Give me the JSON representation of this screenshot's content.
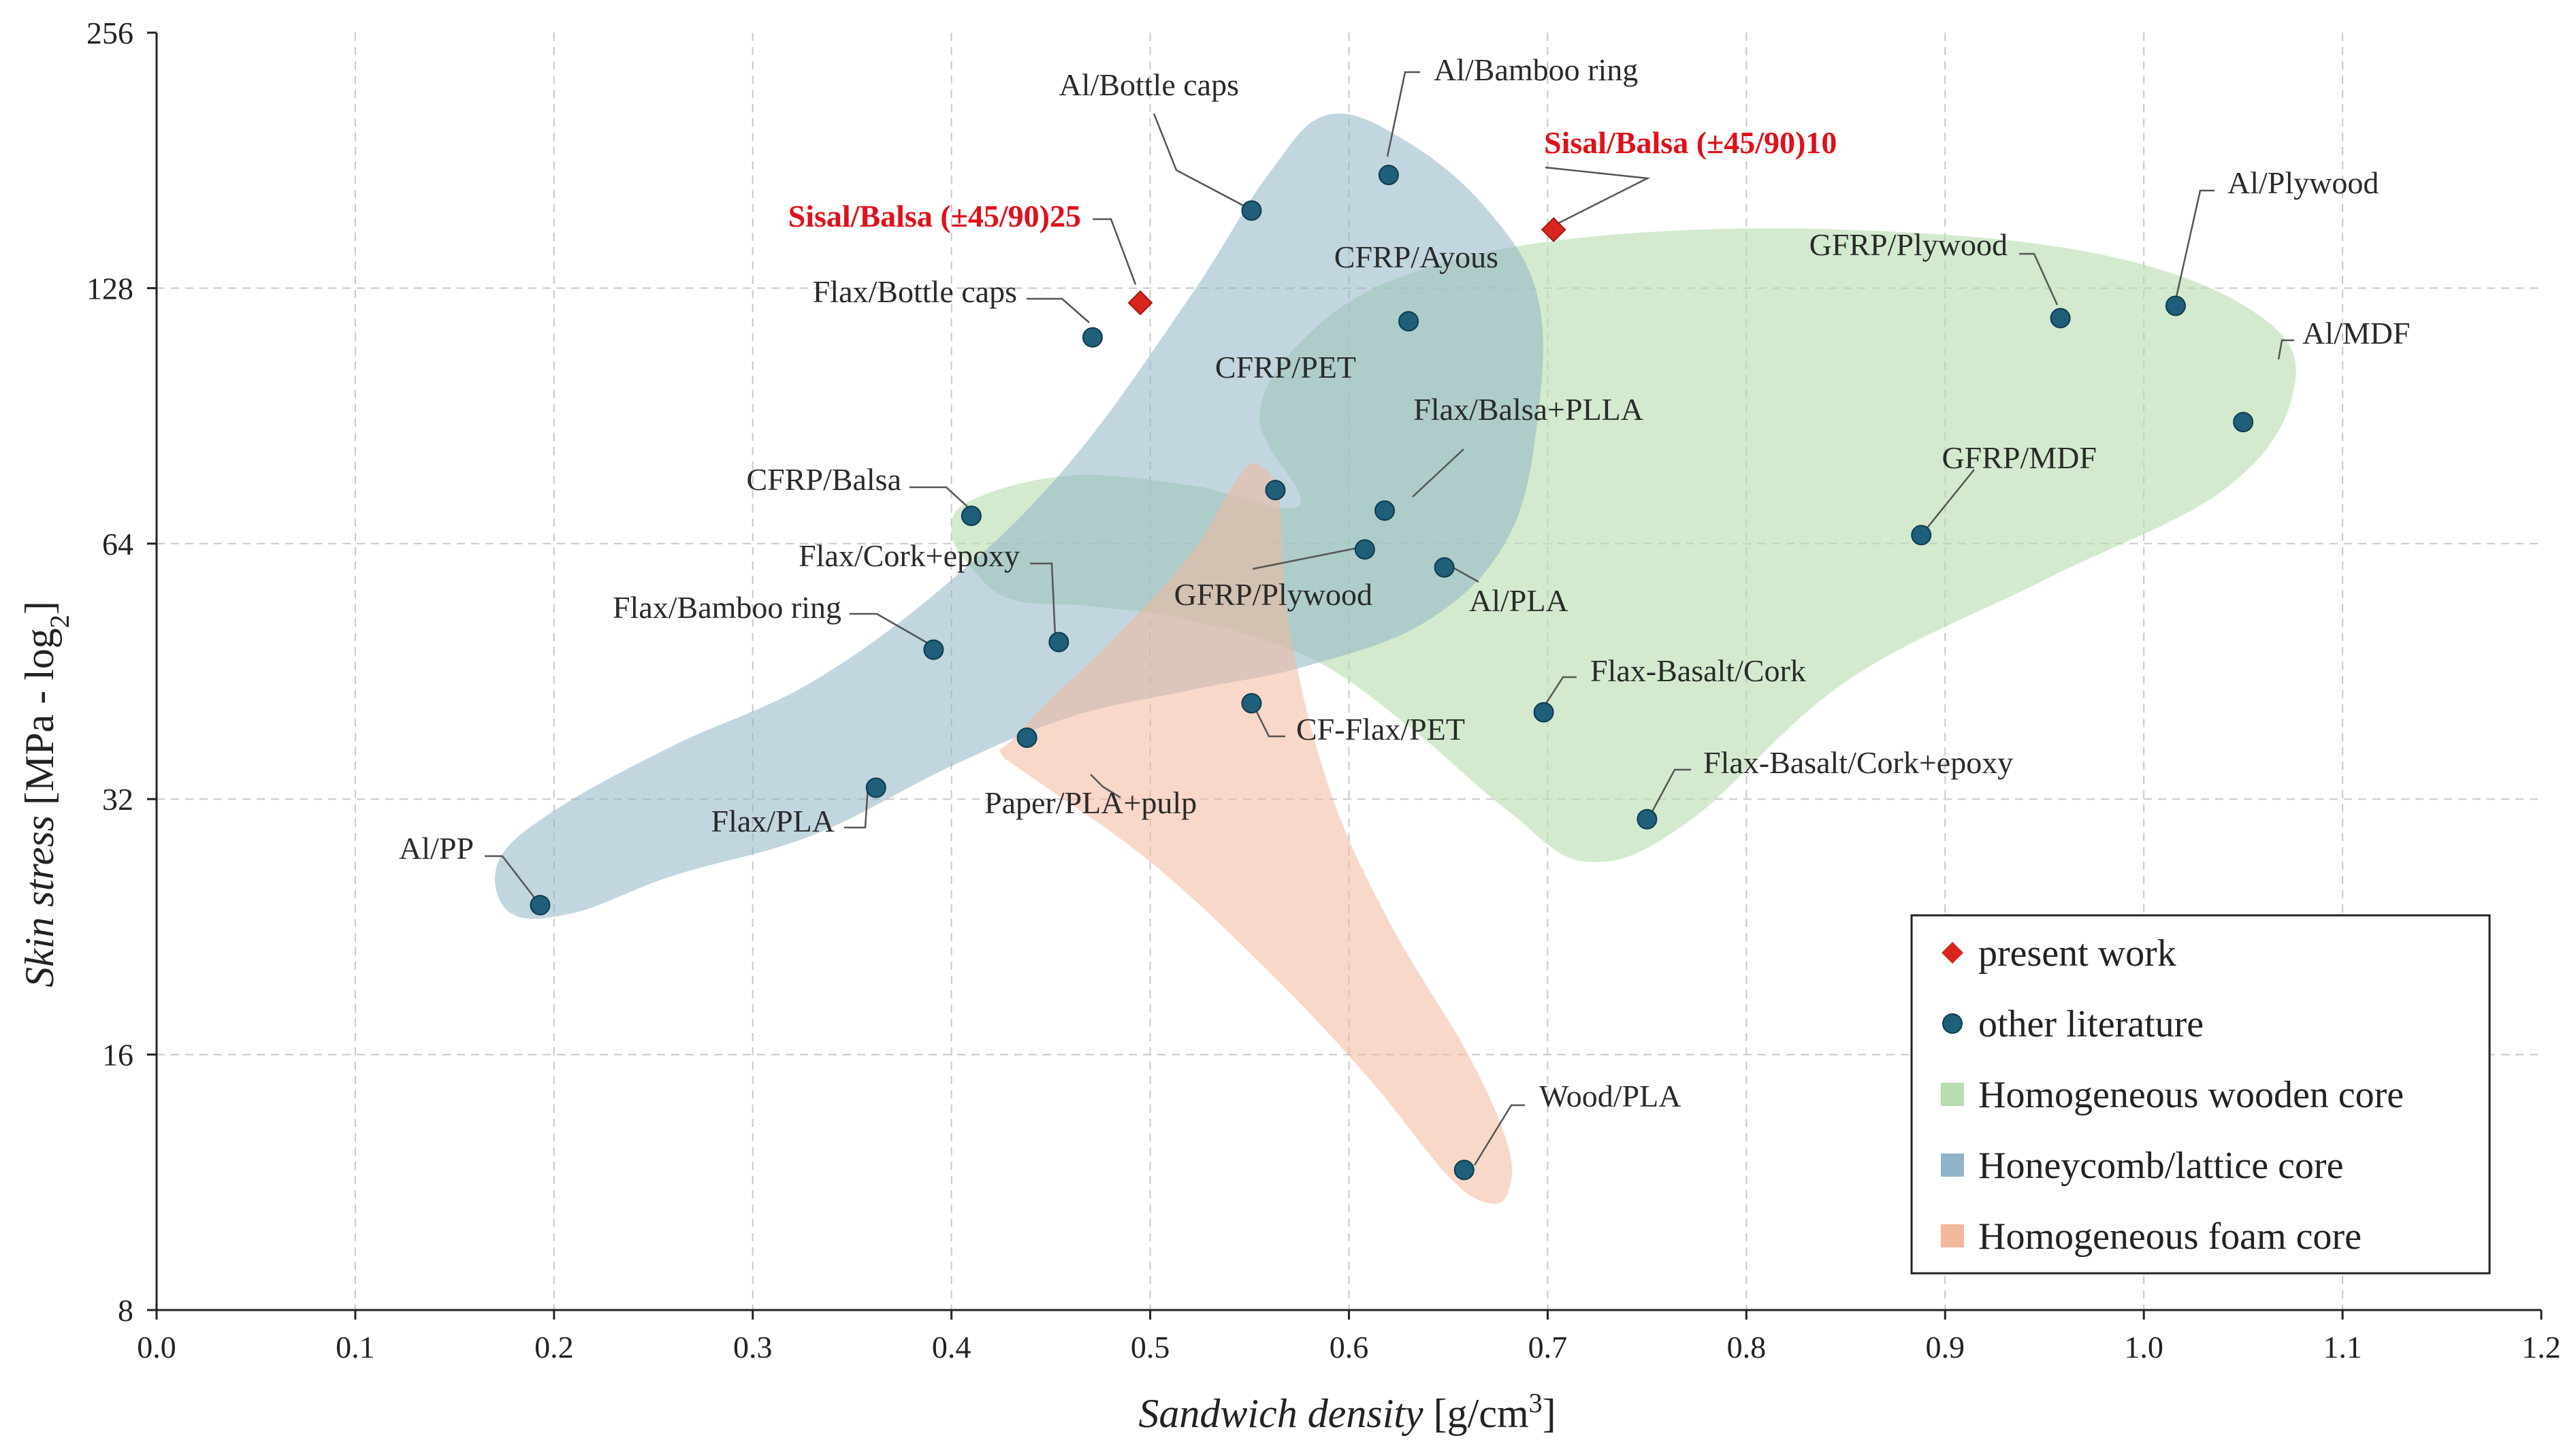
{
  "chart_data": {
    "type": "scatter",
    "title": "",
    "xlabel": "Sandwich density",
    "xlabel_unit": "[g/cm",
    "xlabel_unit_sup": "3",
    "xlabel_unit_end": "]",
    "ylabel": "Skin stress",
    "ylabel_unit": "[MPa - log",
    "ylabel_unit_sub": "2",
    "ylabel_unit_end": "]",
    "xlim": [
      0.0,
      1.2
    ],
    "ylim": [
      8,
      256
    ],
    "yscale": "log2",
    "x_ticks": [
      "0.0",
      "0.1",
      "0.2",
      "0.3",
      "0.4",
      "0.5",
      "0.6",
      "0.7",
      "0.8",
      "0.9",
      "1.0",
      "1.1",
      "1.2"
    ],
    "y_ticks": [
      "8",
      "16",
      "32",
      "64",
      "128",
      "256"
    ],
    "grid": true,
    "colors": {
      "present": "#d9261c",
      "literature": "#1f5f7a",
      "wooden": "#b8ddb0",
      "honeycomb": "#8fb4c7",
      "foam": "#f2b89c"
    },
    "series": [
      {
        "name": "present work",
        "points": [
          {
            "label": "Sisal/Balsa (±45/90)25",
            "x": 0.495,
            "y": 123
          },
          {
            "label": "Sisal/Balsa (±45/90)10",
            "x": 0.703,
            "y": 150
          }
        ]
      },
      {
        "name": "other literature",
        "points": [
          {
            "label": "Al/Bottle caps",
            "x": 0.551,
            "y": 158
          },
          {
            "label": "Al/Bamboo ring",
            "x": 0.62,
            "y": 174
          },
          {
            "label": "CFRP/Ayous",
            "x": 0.63,
            "y": 117
          },
          {
            "label": "Flax/Bottle caps",
            "x": 0.471,
            "y": 112
          },
          {
            "label": "CFRP/PET",
            "x": 0.563,
            "y": 74
          },
          {
            "label": "Flax/Balsa+PLLA",
            "x": 0.618,
            "y": 70
          },
          {
            "label": "GFRP/Plywood",
            "x": 0.608,
            "y": 63
          },
          {
            "label": "Al/PLA",
            "x": 0.648,
            "y": 60
          },
          {
            "label": "CFRP/Balsa",
            "x": 0.41,
            "y": 69
          },
          {
            "label": "Flax/Cork+epoxy",
            "x": 0.454,
            "y": 49
          },
          {
            "label": "Flax/Bamboo ring",
            "x": 0.391,
            "y": 48
          },
          {
            "label": "CF-Flax/PET",
            "x": 0.551,
            "y": 41.5
          },
          {
            "label": "Paper/PLA+pulp",
            "x": 0.438,
            "y": 37.8
          },
          {
            "label": "Flax/PLA",
            "x": 0.362,
            "y": 33
          },
          {
            "label": "Al/PP",
            "x": 0.193,
            "y": 24
          },
          {
            "label": "GFRP/Plywood",
            "x": 0.958,
            "y": 118
          },
          {
            "label": "Al/Plywood",
            "x": 1.016,
            "y": 122
          },
          {
            "label": "Al/MDF",
            "x": 1.05,
            "y": 89
          },
          {
            "label": "GFRP/MDF",
            "x": 0.888,
            "y": 65.5
          },
          {
            "label": "Flax-Basalt/Cork",
            "x": 0.698,
            "y": 40.5
          },
          {
            "label": "Flax-Basalt/Cork+epoxy",
            "x": 0.75,
            "y": 30.3
          },
          {
            "label": "Wood/PLA",
            "x": 0.658,
            "y": 11.7
          }
        ]
      }
    ],
    "regions": [
      {
        "name": "Homogeneous wooden core"
      },
      {
        "name": "Honeycomb/lattice core"
      },
      {
        "name": "Homogeneous foam core"
      }
    ],
    "legend": {
      "position": "bottom-right",
      "entries": [
        "present work",
        "other literature",
        "Homogeneous wooden core",
        "Honeycomb/lattice core",
        "Homogeneous foam core"
      ]
    }
  }
}
